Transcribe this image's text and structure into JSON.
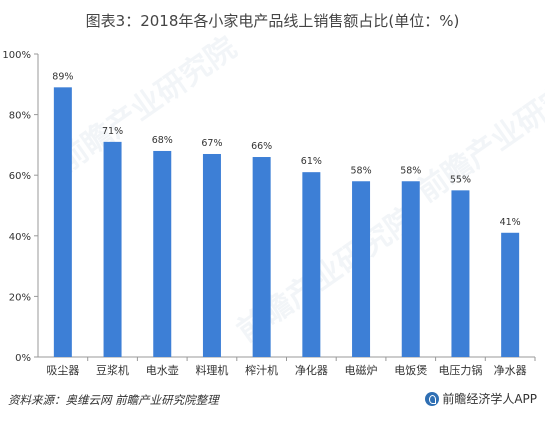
{
  "chart_data": {
    "type": "bar",
    "title": "图表3：2018年各小家电产品线上销售额占比(单位：%)",
    "categories": [
      "吸尘器",
      "豆浆机",
      "电水壶",
      "料理机",
      "榨汁机",
      "净化器",
      "电磁炉",
      "电饭煲",
      "电压力锅",
      "净水器"
    ],
    "values": [
      89,
      71,
      68,
      67,
      66,
      61,
      58,
      58,
      55,
      41
    ],
    "value_labels": [
      "89%",
      "71%",
      "68%",
      "67%",
      "66%",
      "61%",
      "58%",
      "58%",
      "55%",
      "41%"
    ],
    "y_ticks": [
      "0%",
      "20%",
      "40%",
      "60%",
      "80%",
      "100%"
    ],
    "ylim": [
      0,
      100
    ],
    "bar_color": "#3d7fd6",
    "grid": false
  },
  "footer": {
    "source": "资料来源：奥维云网 前瞻产业研究院整理",
    "brand": "前瞻经济学人APP"
  },
  "watermarks": [
    "前瞻产业研究院",
    "前瞻产业研究院",
    "前瞻产业研究院"
  ]
}
